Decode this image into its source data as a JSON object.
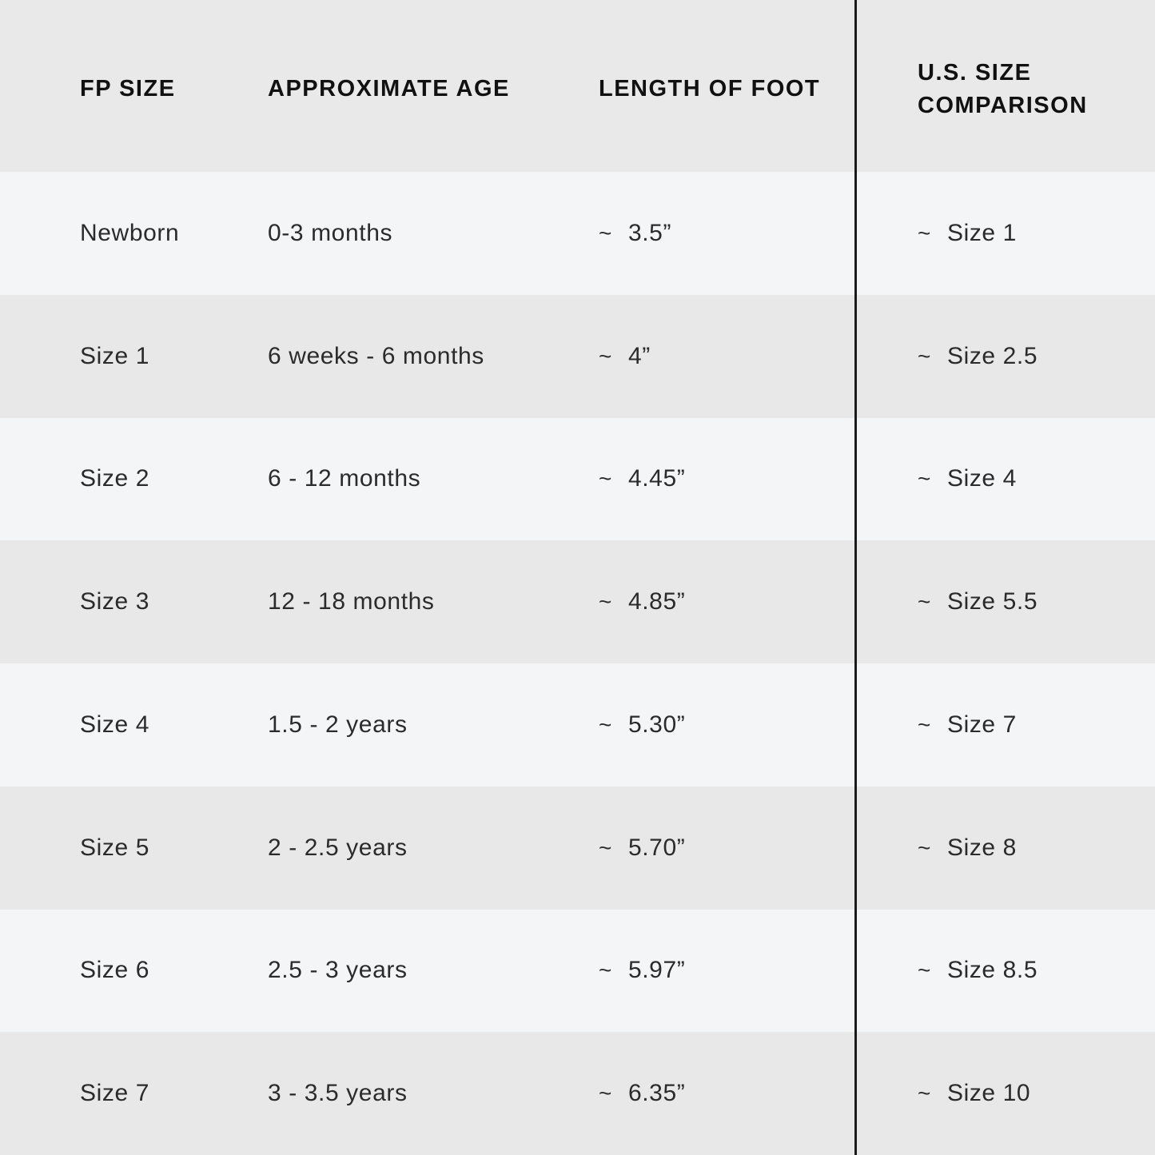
{
  "table": {
    "approx_symbol": "~",
    "headers": {
      "fp_size": "FP SIZE",
      "age": "APPROXIMATE AGE",
      "length": "LENGTH OF FOOT",
      "us_size": "U.S. SIZE COMPARISON"
    },
    "rows": [
      {
        "fp_size": "Newborn",
        "age": "0-3 months",
        "length": "3.5”",
        "us_size": "Size 1"
      },
      {
        "fp_size": "Size 1",
        "age": "6 weeks - 6 months",
        "length": "4”",
        "us_size": "Size 2.5"
      },
      {
        "fp_size": "Size 2",
        "age": "6 - 12 months",
        "length": "4.45”",
        "us_size": "Size 4"
      },
      {
        "fp_size": "Size 3",
        "age": "12 - 18 months",
        "length": "4.85”",
        "us_size": "Size 5.5"
      },
      {
        "fp_size": "Size 4",
        "age": "1.5 - 2 years",
        "length": "5.30”",
        "us_size": "Size 7"
      },
      {
        "fp_size": "Size 5",
        "age": "2 - 2.5 years",
        "length": "5.70”",
        "us_size": "Size 8"
      },
      {
        "fp_size": "Size 6",
        "age": "2.5 - 3 years",
        "length": "5.97”",
        "us_size": "Size 8.5"
      },
      {
        "fp_size": "Size 7",
        "age": "3 - 3.5 years",
        "length": "6.35”",
        "us_size": "Size 10"
      }
    ],
    "colors": {
      "row_light": "#f4f5f7",
      "row_dark": "#e8e8e9",
      "header_bg": "#e9e9e9",
      "divider": "#1a1a1a",
      "body_text": "#2b2b2b",
      "header_text": "#111111"
    }
  },
  "chart_data": {
    "type": "table",
    "columns": [
      "FP SIZE",
      "APPROXIMATE AGE",
      "LENGTH OF FOOT",
      "U.S. SIZE COMPARISON"
    ],
    "rows": [
      [
        "Newborn",
        "0-3 months",
        "~ 3.5”",
        "~ Size 1"
      ],
      [
        "Size 1",
        "6 weeks - 6 months",
        "~ 4”",
        "~ Size 2.5"
      ],
      [
        "Size 2",
        "6 - 12 months",
        "~ 4.45”",
        "~ Size 4"
      ],
      [
        "Size 3",
        "12 - 18 months",
        "~ 4.85”",
        "~ Size 5.5"
      ],
      [
        "Size 4",
        "1.5 - 2 years",
        "~ 5.30”",
        "~ Size 7"
      ],
      [
        "Size 5",
        "2 - 2.5 years",
        "~ 5.70”",
        "~ Size 8"
      ],
      [
        "Size 6",
        "2.5 - 3 years",
        "~ 5.97”",
        "~ Size 8.5"
      ],
      [
        "Size 7",
        "3 - 3.5 years",
        "~ 6.35”",
        "~ Size 10"
      ]
    ]
  }
}
